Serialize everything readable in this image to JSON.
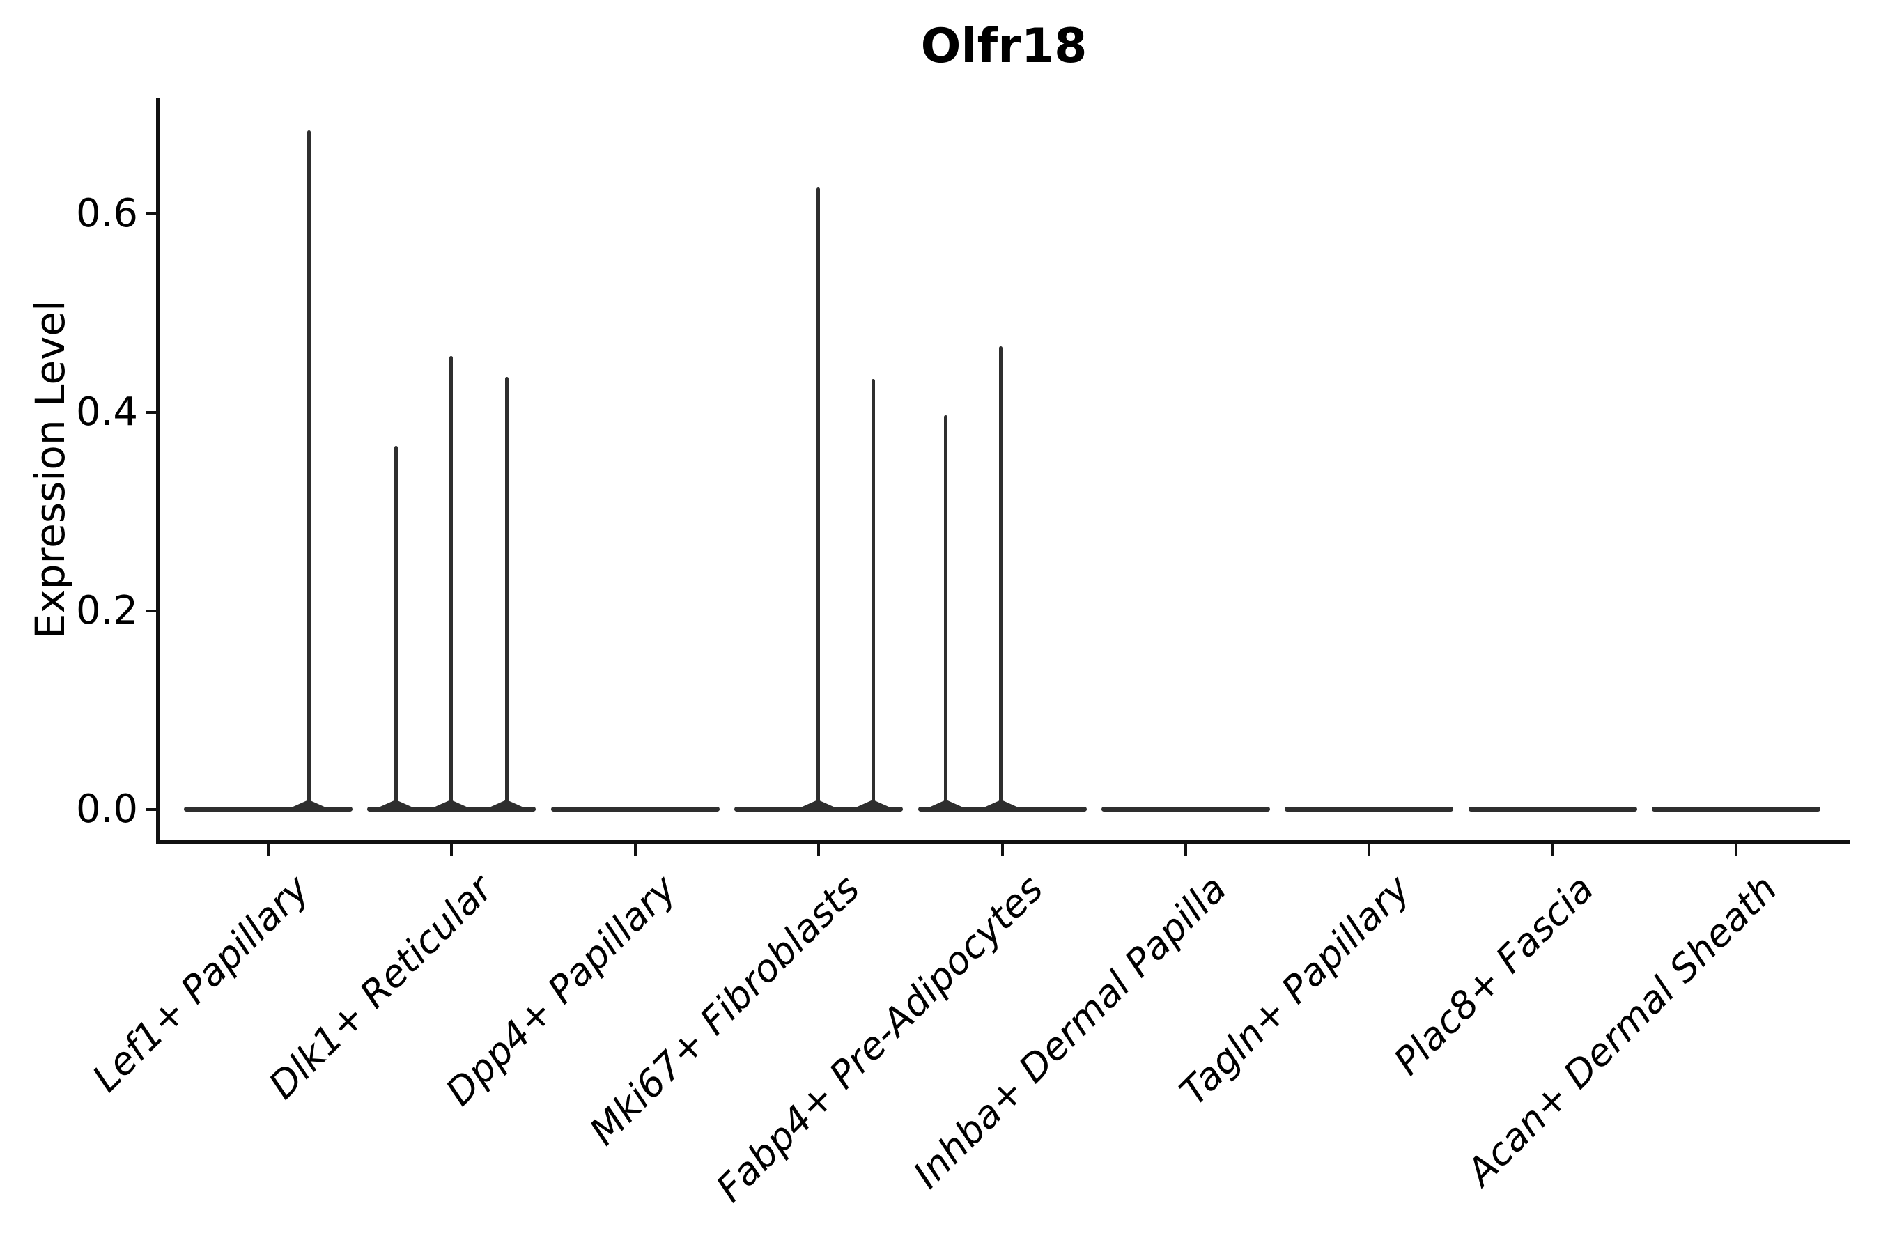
{
  "title": "Olfr18",
  "axes": {
    "ylabel": "Expression Level",
    "yticks": [
      {
        "label": "0.0",
        "value": 0.0
      },
      {
        "label": "0.2",
        "value": 0.2
      },
      {
        "label": "0.4",
        "value": 0.4
      },
      {
        "label": "0.6",
        "value": 0.6
      }
    ]
  },
  "chart_data": {
    "type": "violin",
    "title": "Olfr18",
    "xlabel": "",
    "ylabel": "Expression Level",
    "ylim": [
      -0.033,
      0.717
    ],
    "grid": false,
    "legend": "none",
    "categories": [
      "Lef1+ Papillary",
      "Dlk1+ Reticular",
      "Dpp4+ Papillary",
      "Mki67+ Fibroblasts",
      "Fabp4+ Pre-Adipocytes",
      "Inhba+ Dermal Papilla",
      "Tagln+ Papillary",
      "Plac8+ Fascia",
      "Acan+ Dermal Sheath"
    ],
    "violins": [
      {
        "category": "Lef1+ Papillary",
        "baseline_value": 0.0,
        "spikes": [
          {
            "dx": 58,
            "value": 0.684
          }
        ]
      },
      {
        "category": "Dlk1+ Reticular",
        "baseline_value": 0.0,
        "spikes": [
          {
            "dx": -80,
            "value": 0.366
          },
          {
            "dx": -1,
            "value": 0.457
          },
          {
            "dx": 79,
            "value": 0.436
          }
        ]
      },
      {
        "category": "Dpp4+ Papillary",
        "baseline_value": 0.0,
        "spikes": []
      },
      {
        "category": "Mki67+ Fibroblasts",
        "baseline_value": 0.0,
        "spikes": [
          {
            "dx": -1,
            "value": 0.627
          },
          {
            "dx": 78,
            "value": 0.434
          }
        ]
      },
      {
        "category": "Fabp4+ Pre-Adipocytes",
        "baseline_value": 0.0,
        "spikes": [
          {
            "dx": -81,
            "value": 0.397
          },
          {
            "dx": -2,
            "value": 0.467
          }
        ]
      },
      {
        "category": "Inhba+ Dermal Papilla",
        "baseline_value": 0.0,
        "spikes": []
      },
      {
        "category": "Tagln+ Papillary",
        "baseline_value": 0.0,
        "spikes": []
      },
      {
        "category": "Plac8+ Fascia",
        "baseline_value": 0.0,
        "spikes": []
      },
      {
        "category": "Acan+ Dermal Sheath",
        "baseline_value": 0.0,
        "spikes": []
      }
    ],
    "colors": {
      "violin": "#2e2e2e",
      "axis": "#111111",
      "text": "#000000",
      "background": "#ffffff"
    }
  }
}
